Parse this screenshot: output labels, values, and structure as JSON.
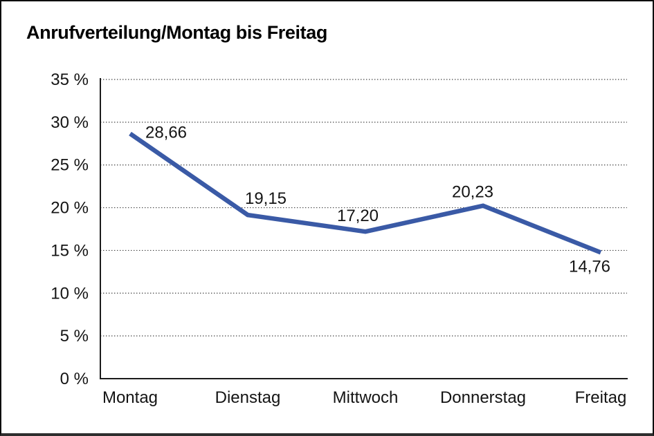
{
  "chart_data": {
    "type": "line",
    "title": "Anrufverteilung/Montag bis Freitag",
    "categories": [
      "Montag",
      "Dienstag",
      "Mittwoch",
      "Donnerstag",
      "Freitag"
    ],
    "series": [
      {
        "name": "Anrufverteilung",
        "values": [
          28.66,
          19.15,
          17.2,
          20.23,
          14.76
        ],
        "value_labels": [
          "28,66",
          "19,15",
          "17,20",
          "20,23",
          "14,76"
        ]
      }
    ],
    "xlabel": "",
    "ylabel": "",
    "unit": "%",
    "ylim": [
      0,
      35
    ],
    "y_ticks": [
      0,
      5,
      10,
      15,
      20,
      25,
      30,
      35
    ],
    "y_tick_labels": [
      "0 %",
      "5 %",
      "10 %",
      "15 %",
      "20 %",
      "25 %",
      "30 %",
      "35 %"
    ],
    "grid": "horizontal-dotted",
    "legend_position": "none",
    "colors": {
      "line": "#3A5AA6",
      "axis": "#1a1a1a",
      "grid": "#3f3f3f",
      "text": "#141414",
      "title": "#000000",
      "background": "#ffffff",
      "border": "#0d0d0d"
    }
  }
}
